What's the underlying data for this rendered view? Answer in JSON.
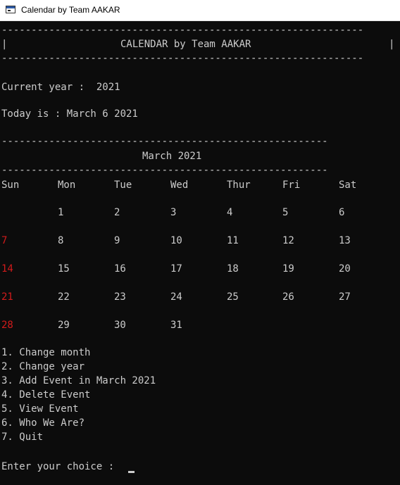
{
  "window": {
    "title": "Calendar by Team AAKAR"
  },
  "banner": {
    "separator": "-------------------------------------------------------------",
    "left_bar": "|",
    "right_bar": "|",
    "title": "CALENDAR by Team AAKAR"
  },
  "info": {
    "current_year": "Current year :  2021",
    "today": "Today is : March 6 2021"
  },
  "calendar": {
    "separator": "-------------------------------------------------------",
    "month_title": "March 2021",
    "weekdays": [
      "Sun",
      "Mon",
      "Tue",
      "Wed",
      "Thur",
      "Fri",
      "Sat"
    ],
    "weeks": [
      [
        "",
        "1",
        "2",
        "3",
        "4",
        "5",
        "6"
      ],
      [
        "7",
        "8",
        "9",
        "10",
        "11",
        "12",
        "13"
      ],
      [
        "14",
        "15",
        "16",
        "17",
        "18",
        "19",
        "20"
      ],
      [
        "21",
        "22",
        "23",
        "24",
        "25",
        "26",
        "27"
      ],
      [
        "28",
        "29",
        "30",
        "31",
        "",
        "",
        ""
      ]
    ],
    "sunday_color": "#d11b1b",
    "text_color": "#cccccc"
  },
  "menu": {
    "items": [
      "1. Change month",
      "2. Change year",
      "3. Add Event in March 2021",
      "4. Delete Event",
      "5. View Event",
      "6. Who We Are?",
      "7. Quit"
    ]
  },
  "prompt": {
    "label": "Enter your choice : "
  }
}
